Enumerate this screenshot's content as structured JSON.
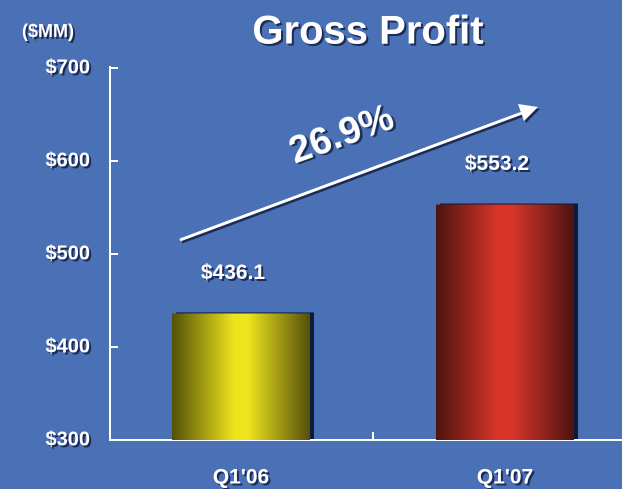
{
  "chart_data": {
    "type": "bar",
    "title": "Gross Profit",
    "y_label": "($MM)",
    "annotation": "26.9%",
    "categories": [
      "Q1'06",
      "Q1'07"
    ],
    "values": [
      436.1,
      553.2
    ],
    "value_labels": [
      "$436.1",
      "$553.2"
    ],
    "colors": [
      "#eee41c",
      "#d8352a"
    ],
    "ylim": [
      300,
      700
    ],
    "yticks": [
      {
        "value": 300,
        "label": "$300"
      },
      {
        "value": 400,
        "label": "$400"
      },
      {
        "value": 500,
        "label": "$500"
      },
      {
        "value": 600,
        "label": "$600"
      },
      {
        "value": 700,
        "label": "$700"
      }
    ]
  }
}
